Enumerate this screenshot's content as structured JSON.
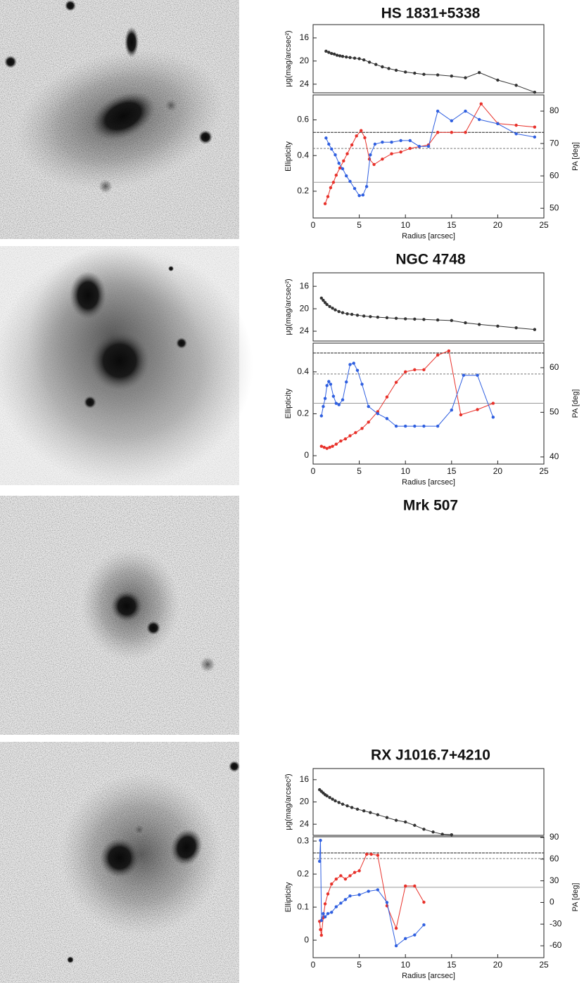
{
  "chart_data": [
    {
      "type": "line",
      "title": "HS 1831+5338",
      "ylabel": "μg(mag/arcsec²)",
      "x": [
        1.4,
        1.7,
        2.0,
        2.3,
        2.6,
        2.9,
        3.2,
        3.6,
        4.0,
        4.5,
        5.0,
        5.5,
        6.1,
        6.8,
        7.5,
        8.2,
        9.0,
        10,
        11,
        12,
        13.5,
        15,
        16.5,
        18,
        20,
        22,
        24
      ],
      "series": [
        {
          "color": "#333333",
          "values": [
            18.3,
            18.5,
            18.7,
            18.8,
            19.0,
            19.1,
            19.2,
            19.3,
            19.4,
            19.5,
            19.6,
            19.8,
            20.2,
            20.6,
            21.0,
            21.3,
            21.6,
            21.9,
            22.1,
            22.3,
            22.4,
            22.6,
            22.9,
            22.0,
            23.3,
            24.2,
            25.4
          ]
        }
      ],
      "xlim": [
        0,
        25
      ],
      "ylim": [
        25.5,
        13.7
      ],
      "yticks": [
        16,
        20,
        24
      ]
    },
    {
      "type": "line",
      "ylabel": "Ellipticity",
      "y2label": "PA [deg]",
      "xlabel": "Radius [arcsec]",
      "series": [
        {
          "color": "#e8312a",
          "x": [
            1.3,
            1.6,
            1.9,
            2.2,
            2.5,
            2.9,
            3.3,
            3.7,
            4.2,
            4.7,
            5.2,
            5.6,
            6.1,
            6.6,
            7.5,
            8.5,
            9.5,
            10.5,
            11.5,
            12.5,
            13.5,
            15,
            16.5,
            18.2,
            20,
            22,
            24
          ],
          "values": [
            0.13,
            0.17,
            0.22,
            0.25,
            0.29,
            0.33,
            0.37,
            0.41,
            0.46,
            0.51,
            0.54,
            0.5,
            0.38,
            0.35,
            0.38,
            0.41,
            0.42,
            0.44,
            0.45,
            0.46,
            0.53,
            0.53,
            0.53,
            0.69,
            0.58,
            0.57,
            0.56
          ]
        },
        {
          "color": "#2f5fe0",
          "axis": "y2",
          "x": [
            1.4,
            1.7,
            2.0,
            2.4,
            2.8,
            3.2,
            3.6,
            4.0,
            4.5,
            5.0,
            5.4,
            5.8,
            6.2,
            6.7,
            7.5,
            8.5,
            9.5,
            10.5,
            11.5,
            12.5,
            13.5,
            15,
            16.5,
            18,
            20,
            22,
            24
          ],
          "values": [
            71.7,
            69.8,
            68.3,
            66.5,
            63.9,
            62.2,
            60,
            58.3,
            56.1,
            53.9,
            54.1,
            56.7,
            66.5,
            69.8,
            70.4,
            70.4,
            70.9,
            70.9,
            69.1,
            69.1,
            80,
            77,
            80,
            77.4,
            76.1,
            73,
            72
          ]
        }
      ],
      "xlim": [
        0,
        25
      ],
      "xticks": [
        0,
        5,
        10,
        15,
        20,
        25
      ],
      "ylim": [
        0.05,
        0.74
      ],
      "yticks": [
        0.2,
        0.4,
        0.6
      ],
      "y2lim": [
        47,
        85
      ],
      "y2ticks": [
        50,
        60,
        70,
        80
      ],
      "hlines": [
        0.53,
        0.44,
        0.25
      ]
    },
    {
      "type": "line",
      "title": "NGC 4748",
      "ylabel": "μg(mag/arcsec²)",
      "x": [
        0.9,
        1.1,
        1.3,
        1.5,
        1.8,
        2.1,
        2.4,
        2.8,
        3.2,
        3.7,
        4.2,
        4.8,
        5.5,
        6.2,
        7,
        8,
        9,
        10,
        11,
        12,
        13.5,
        15,
        16.5,
        18,
        20,
        22,
        24
      ],
      "series": [
        {
          "color": "#333333",
          "values": [
            18.1,
            18.5,
            18.9,
            19.25,
            19.6,
            19.9,
            20.2,
            20.5,
            20.7,
            20.9,
            21.0,
            21.15,
            21.3,
            21.4,
            21.5,
            21.6,
            21.7,
            21.8,
            21.85,
            21.9,
            22.0,
            22.1,
            22.5,
            22.8,
            23.1,
            23.4,
            23.7
          ]
        }
      ],
      "xlim": [
        0,
        25
      ],
      "ylim": [
        25.75,
        13.6
      ],
      "yticks": [
        16,
        20,
        24
      ]
    },
    {
      "type": "line",
      "ylabel": "Ellipticity",
      "y2label": "PA [deg]",
      "xlabel": "Radius [arcsec]",
      "series": [
        {
          "color": "#e8312a",
          "x": [
            0.9,
            1.2,
            1.5,
            1.8,
            2.1,
            2.5,
            3,
            3.5,
            4,
            4.6,
            5.3,
            6,
            7,
            8,
            9,
            10,
            11,
            12,
            13.5,
            14.7,
            16,
            17.8,
            19.5
          ],
          "values": [
            0.045,
            0.04,
            0.035,
            0.04,
            0.045,
            0.055,
            0.07,
            0.08,
            0.095,
            0.11,
            0.13,
            0.16,
            0.21,
            0.28,
            0.35,
            0.4,
            0.41,
            0.41,
            0.48,
            0.5,
            0.195,
            0.22,
            0.25
          ]
        },
        {
          "color": "#2f5fe0",
          "axis": "y2",
          "x": [
            0.9,
            1.1,
            1.3,
            1.5,
            1.7,
            1.9,
            2.2,
            2.5,
            2.8,
            3.2,
            3.6,
            4.0,
            4.4,
            4.8,
            5.3,
            6,
            7,
            8,
            9,
            10,
            11,
            12,
            13.5,
            15,
            16.3,
            17.8,
            19.5
          ],
          "values": [
            49.2,
            51.3,
            53.1,
            56,
            56.9,
            56.3,
            53.6,
            52,
            51.7,
            52.8,
            56.8,
            60.7,
            61,
            59.4,
            56.3,
            51.3,
            49.7,
            48.6,
            46.9,
            46.9,
            46.9,
            46.9,
            46.9,
            50.5,
            58.3,
            58.3,
            48.9
          ]
        }
      ],
      "xlim": [
        0,
        25
      ],
      "xticks": [
        0,
        5,
        10,
        15,
        20,
        25
      ],
      "ylim": [
        -0.04,
        0.537
      ],
      "yticks": [
        0,
        0.2,
        0.4
      ],
      "y2lim": [
        38.4,
        65.5
      ],
      "y2ticks": [
        40,
        50,
        60
      ],
      "hlines": [
        0.49,
        0.39,
        0.25
      ]
    },
    {
      "type": "image",
      "title": "Mrk 507"
    },
    {
      "type": "line",
      "title": "RX J1016.7+4210",
      "ylabel": "μg(mag/arcsec²)",
      "x": [
        0.7,
        0.9,
        1.1,
        1.3,
        1.5,
        1.8,
        2.1,
        2.4,
        2.8,
        3.2,
        3.7,
        4.2,
        4.8,
        5.5,
        6.2,
        7,
        8,
        9,
        10,
        11,
        12,
        13,
        14,
        15
      ],
      "series": [
        {
          "color": "#333333",
          "values": [
            17.8,
            18.1,
            18.4,
            18.7,
            18.9,
            19.2,
            19.5,
            19.8,
            20.1,
            20.4,
            20.7,
            21.0,
            21.3,
            21.6,
            21.9,
            22.3,
            22.8,
            23.3,
            23.6,
            24.2,
            24.9,
            25.4,
            25.8,
            25.9
          ]
        }
      ],
      "xlim": [
        0,
        25
      ],
      "ylim": [
        26,
        14
      ],
      "yticks": [
        16,
        20,
        24
      ]
    },
    {
      "type": "line",
      "ylabel": "Ellipticity",
      "y2label": "PA [deg]",
      "xlabel": "Radius [arcsec]",
      "series": [
        {
          "color": "#e8312a",
          "x": [
            0.7,
            0.8,
            0.9,
            1.1,
            1.3,
            1.6,
            2,
            2.5,
            3,
            3.5,
            4,
            4.5,
            5,
            5.8,
            6.3,
            7,
            8,
            9,
            10,
            11,
            12
          ],
          "values": [
            0.057,
            0.032,
            0.015,
            0.068,
            0.11,
            0.14,
            0.17,
            0.185,
            0.195,
            0.185,
            0.195,
            0.205,
            0.21,
            0.26,
            0.26,
            0.257,
            0.104,
            0.036,
            0.164,
            0.164,
            0.115
          ]
        },
        {
          "color": "#2f5fe0",
          "axis": "y2",
          "x": [
            0.7,
            0.8,
            0.9,
            1.1,
            1.3,
            1.6,
            2,
            2.5,
            3,
            3.5,
            4,
            5,
            6,
            7,
            8,
            9,
            10,
            11,
            12
          ],
          "values": [
            57,
            86,
            -25,
            -15.5,
            -20,
            -15.5,
            -13.6,
            -6,
            -1,
            4,
            9,
            10.7,
            15.5,
            17.5,
            0,
            -60,
            -50,
            -45,
            -31
          ]
        }
      ],
      "xlim": [
        0,
        25
      ],
      "xticks": [
        0,
        5,
        10,
        15,
        20,
        25
      ],
      "ylim": [
        -0.053,
        0.313
      ],
      "yticks": [
        0,
        0.1,
        0.2,
        0.3
      ],
      "y2lim": [
        -76.5,
        91
      ],
      "y2ticks": [
        -60,
        -30,
        0,
        30,
        60,
        90
      ],
      "hlines": [
        0.264,
        0.247,
        0.16
      ]
    }
  ]
}
